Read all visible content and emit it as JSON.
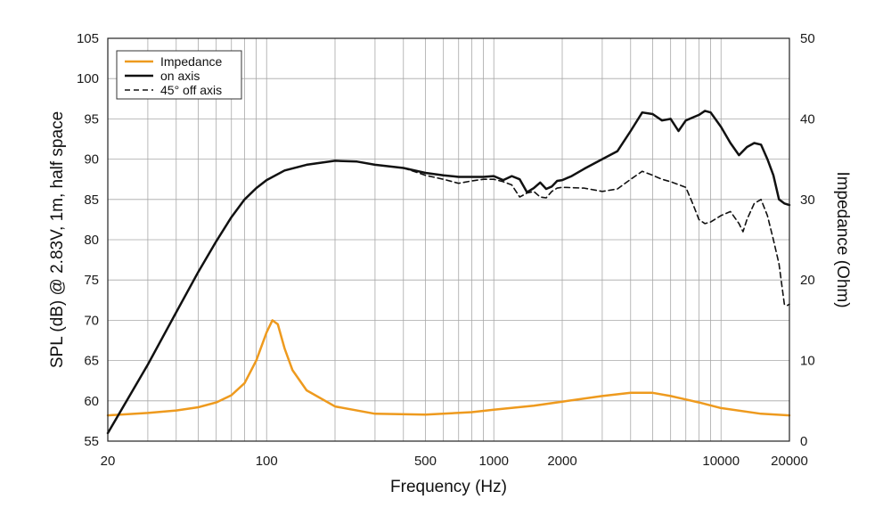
{
  "chart_data": {
    "type": "line",
    "xlabel": "Frequency (Hz)",
    "ylabel_left": "SPL (dB) @ 2.83V, 1m, half space",
    "ylabel_right": "Impedance (Ohm)",
    "x_scale": "log",
    "xlim": [
      20,
      20000
    ],
    "ylim_left": [
      55,
      105
    ],
    "ylim_right": [
      0,
      50
    ],
    "x_ticks": [
      {
        "value": 20,
        "label": "20"
      },
      {
        "value": 100,
        "label": "100"
      },
      {
        "value": 500,
        "label": "500"
      },
      {
        "value": 1000,
        "label": "1000"
      },
      {
        "value": 2000,
        "label": "2000"
      },
      {
        "value": 10000,
        "label": "10000"
      },
      {
        "value": 20000,
        "label": "20000"
      }
    ],
    "y_ticks_left": [
      {
        "value": 55,
        "label": "55"
      },
      {
        "value": 60,
        "label": "60"
      },
      {
        "value": 65,
        "label": "65"
      },
      {
        "value": 70,
        "label": "70"
      },
      {
        "value": 75,
        "label": "75"
      },
      {
        "value": 80,
        "label": "80"
      },
      {
        "value": 85,
        "label": "85"
      },
      {
        "value": 90,
        "label": "90"
      },
      {
        "value": 95,
        "label": "95"
      },
      {
        "value": 100,
        "label": "100"
      },
      {
        "value": 105,
        "label": "105"
      }
    ],
    "y_ticks_right": [
      {
        "value": 0,
        "label": "0"
      },
      {
        "value": 10,
        "label": "10"
      },
      {
        "value": 20,
        "label": "20"
      },
      {
        "value": 30,
        "label": "30"
      },
      {
        "value": 40,
        "label": "40"
      },
      {
        "value": 50,
        "label": "50"
      }
    ],
    "grid": true,
    "legend_position": "top-left",
    "series": [
      {
        "name": "Impedance",
        "axis": "right",
        "color": "#ee9a1e",
        "style": "solid",
        "points": [
          [
            20,
            3.2
          ],
          [
            30,
            3.5
          ],
          [
            40,
            3.8
          ],
          [
            50,
            4.2
          ],
          [
            60,
            4.8
          ],
          [
            70,
            5.7
          ],
          [
            80,
            7.2
          ],
          [
            90,
            10.0
          ],
          [
            100,
            13.5
          ],
          [
            106,
            15.0
          ],
          [
            112,
            14.5
          ],
          [
            120,
            11.5
          ],
          [
            130,
            8.8
          ],
          [
            150,
            6.3
          ],
          [
            200,
            4.3
          ],
          [
            300,
            3.4
          ],
          [
            500,
            3.3
          ],
          [
            800,
            3.6
          ],
          [
            1000,
            3.9
          ],
          [
            1500,
            4.4
          ],
          [
            2000,
            4.9
          ],
          [
            3000,
            5.6
          ],
          [
            4000,
            6.0
          ],
          [
            5000,
            6.0
          ],
          [
            6000,
            5.6
          ],
          [
            8000,
            4.8
          ],
          [
            10000,
            4.1
          ],
          [
            15000,
            3.4
          ],
          [
            20000,
            3.2
          ]
        ]
      },
      {
        "name": "on axis",
        "axis": "left",
        "color": "#111111",
        "style": "solid",
        "points": [
          [
            20,
            56
          ],
          [
            30,
            64.5
          ],
          [
            40,
            71
          ],
          [
            50,
            76
          ],
          [
            60,
            79.8
          ],
          [
            70,
            82.8
          ],
          [
            80,
            85.0
          ],
          [
            90,
            86.4
          ],
          [
            100,
            87.4
          ],
          [
            120,
            88.6
          ],
          [
            150,
            89.3
          ],
          [
            200,
            89.8
          ],
          [
            250,
            89.7
          ],
          [
            300,
            89.3
          ],
          [
            400,
            88.9
          ],
          [
            500,
            88.3
          ],
          [
            600,
            88.0
          ],
          [
            700,
            87.8
          ],
          [
            800,
            87.8
          ],
          [
            900,
            87.8
          ],
          [
            1000,
            87.9
          ],
          [
            1100,
            87.4
          ],
          [
            1200,
            87.9
          ],
          [
            1300,
            87.5
          ],
          [
            1400,
            85.9
          ],
          [
            1500,
            86.4
          ],
          [
            1600,
            87.1
          ],
          [
            1700,
            86.3
          ],
          [
            1800,
            86.6
          ],
          [
            1900,
            87.3
          ],
          [
            2000,
            87.4
          ],
          [
            2200,
            87.9
          ],
          [
            2500,
            88.8
          ],
          [
            3000,
            90.0
          ],
          [
            3500,
            91.0
          ],
          [
            4000,
            93.5
          ],
          [
            4500,
            95.8
          ],
          [
            5000,
            95.6
          ],
          [
            5500,
            94.8
          ],
          [
            6000,
            95.0
          ],
          [
            6500,
            93.5
          ],
          [
            7000,
            94.8
          ],
          [
            8000,
            95.5
          ],
          [
            8500,
            96.0
          ],
          [
            9000,
            95.8
          ],
          [
            10000,
            94.0
          ],
          [
            11000,
            92.0
          ],
          [
            12000,
            90.5
          ],
          [
            13000,
            91.5
          ],
          [
            14000,
            92.0
          ],
          [
            15000,
            91.8
          ],
          [
            16000,
            90.0
          ],
          [
            17000,
            88.0
          ],
          [
            18000,
            85.0
          ],
          [
            19000,
            84.5
          ],
          [
            20000,
            84.3
          ]
        ]
      },
      {
        "name": "45° off axis",
        "axis": "left",
        "color": "#111111",
        "style": "dashed",
        "points": [
          [
            400,
            88.9
          ],
          [
            500,
            88.0
          ],
          [
            600,
            87.5
          ],
          [
            700,
            87.0
          ],
          [
            800,
            87.3
          ],
          [
            900,
            87.5
          ],
          [
            1000,
            87.5
          ],
          [
            1100,
            87.2
          ],
          [
            1200,
            86.8
          ],
          [
            1300,
            85.3
          ],
          [
            1400,
            85.8
          ],
          [
            1500,
            86.0
          ],
          [
            1600,
            85.3
          ],
          [
            1700,
            85.2
          ],
          [
            1800,
            86.0
          ],
          [
            1900,
            86.4
          ],
          [
            2000,
            86.5
          ],
          [
            2500,
            86.4
          ],
          [
            3000,
            86.0
          ],
          [
            3500,
            86.3
          ],
          [
            4000,
            87.5
          ],
          [
            4500,
            88.5
          ],
          [
            5000,
            88.0
          ],
          [
            5500,
            87.5
          ],
          [
            6000,
            87.2
          ],
          [
            7000,
            86.5
          ],
          [
            7500,
            84.5
          ],
          [
            8000,
            82.5
          ],
          [
            8500,
            82.0
          ],
          [
            9000,
            82.2
          ],
          [
            10000,
            83.0
          ],
          [
            11000,
            83.5
          ],
          [
            12000,
            82.0
          ],
          [
            12500,
            81.0
          ],
          [
            13000,
            82.5
          ],
          [
            14000,
            84.5
          ],
          [
            15000,
            85.0
          ],
          [
            16000,
            83.0
          ],
          [
            17000,
            80.0
          ],
          [
            18000,
            77.0
          ],
          [
            19000,
            72.0
          ],
          [
            19500,
            71.8
          ],
          [
            20000,
            72.0
          ]
        ]
      }
    ]
  }
}
